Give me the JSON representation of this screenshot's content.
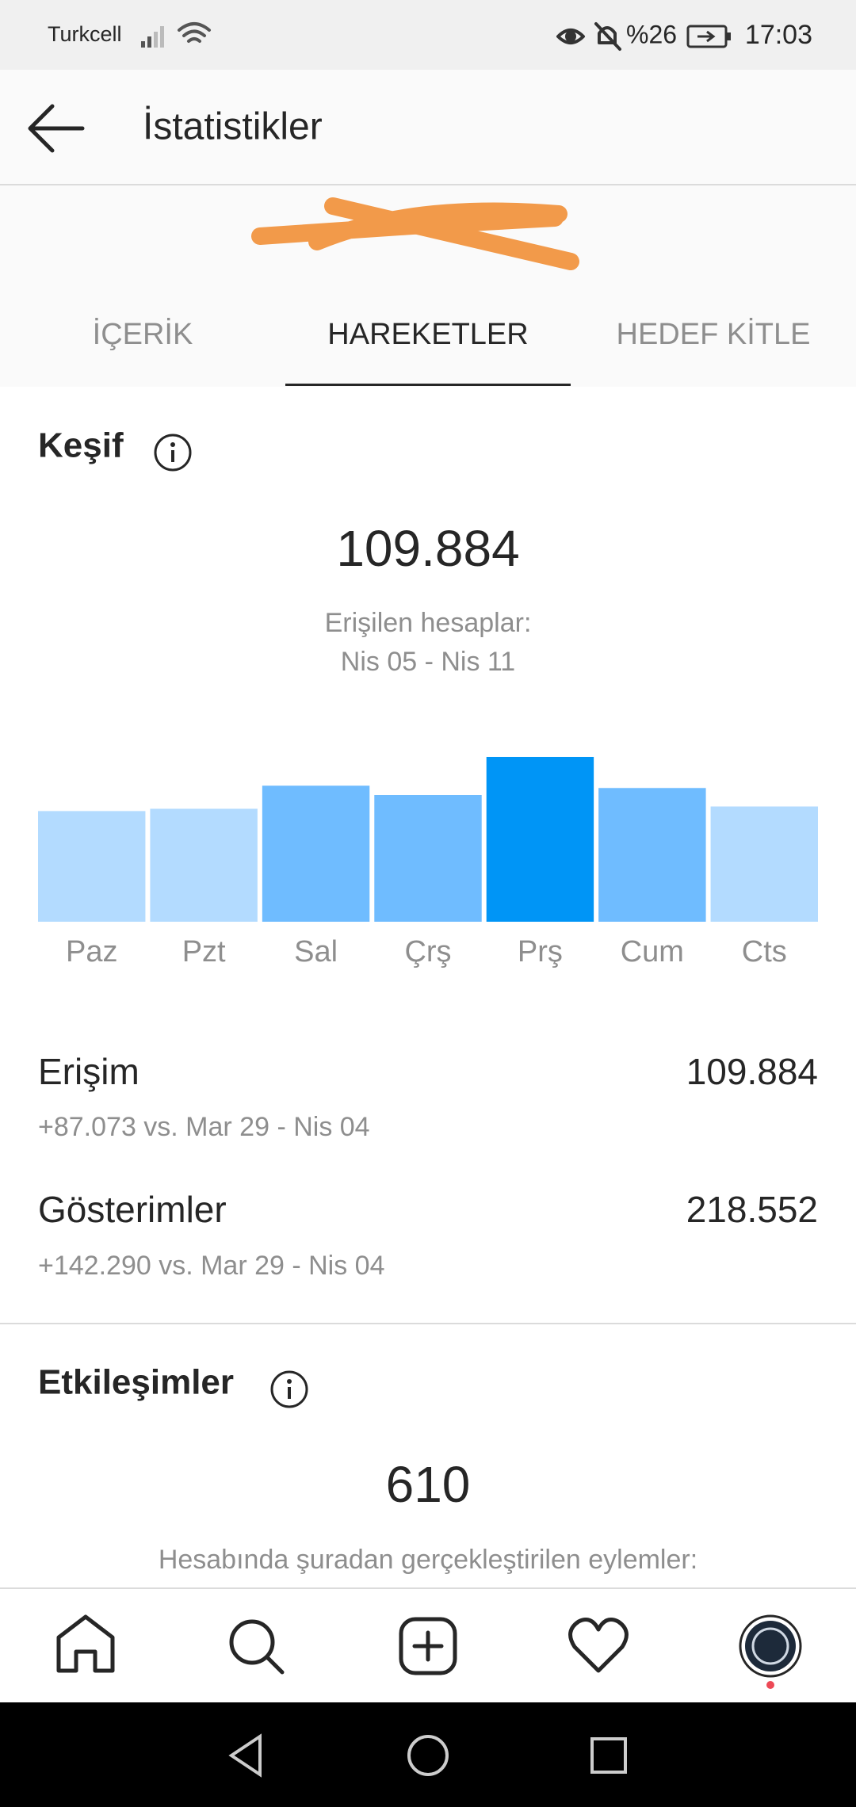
{
  "status_bar": {
    "carrier": "Turkcell",
    "battery": "%26",
    "time": "17:03"
  },
  "header": {
    "title": "İstatistikler"
  },
  "tabs": [
    "İÇERİK",
    "HAREKETLER",
    "HEDEF KİTLE"
  ],
  "discovery": {
    "title": "Keşif",
    "value": "109.884",
    "subtitle": "Erişilen hesaplar:",
    "period": "Nis 05 - Nis 11",
    "stats": [
      {
        "label": "Erişim",
        "value": "109.884",
        "change": "+87.073 vs. Mar 29 - Nis 04"
      },
      {
        "label": "Gösterimler",
        "value": "218.552",
        "change": "+142.290 vs. Mar 29 - Nis 04"
      }
    ]
  },
  "chart_data": {
    "type": "bar",
    "categories": [
      "Paz",
      "Pzt",
      "Sal",
      "Çrş",
      "Prş",
      "Cum",
      "Cts"
    ],
    "values": [
      96,
      98,
      118,
      110,
      143,
      116,
      100
    ],
    "colors": [
      "#b3dbff",
      "#b3dbff",
      "#6fbcff",
      "#6fbcff",
      "#0095f6",
      "#6fbcff",
      "#b3dbff"
    ]
  },
  "interactions": {
    "title": "Etkileşimler",
    "value": "610",
    "subtitle": "Hesabında şuradan gerçekleştirilen eylemler:"
  }
}
